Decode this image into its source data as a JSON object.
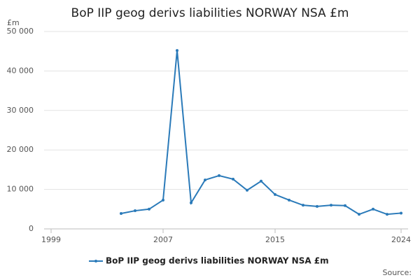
{
  "chart_data": {
    "type": "line",
    "title": "BoP IIP geog derivs liabilities NORWAY NSA £m",
    "y_label": "£m",
    "source": "Source:",
    "x": [
      2004,
      2005,
      2006,
      2007,
      2008,
      2009,
      2010,
      2011,
      2012,
      2013,
      2014,
      2015,
      2016,
      2017,
      2018,
      2019,
      2020,
      2021,
      2022,
      2023,
      2024
    ],
    "series": [
      {
        "name": "BoP IIP geog derivs liabilities NORWAY NSA £m",
        "color": "#2a7ab9",
        "values": [
          3900,
          4600,
          5000,
          7300,
          45200,
          6600,
          12400,
          13500,
          12600,
          9800,
          12100,
          8700,
          7300,
          6000,
          5700,
          6000,
          5900,
          3700,
          5000,
          3700,
          4000
        ]
      }
    ],
    "xlim": [
      1999,
      2024
    ],
    "xticks": [
      1999,
      2007,
      2015,
      2024
    ],
    "ylim": [
      0,
      50000
    ],
    "yticks": [
      0,
      {
        "value": 10000,
        "label": "10 000"
      },
      {
        "value": 20000,
        "label": "20 000"
      },
      {
        "value": 30000,
        "label": "30 000"
      },
      {
        "value": 40000,
        "label": "40 000"
      },
      {
        "value": 50000,
        "label": "50 000"
      }
    ],
    "grid": true
  }
}
